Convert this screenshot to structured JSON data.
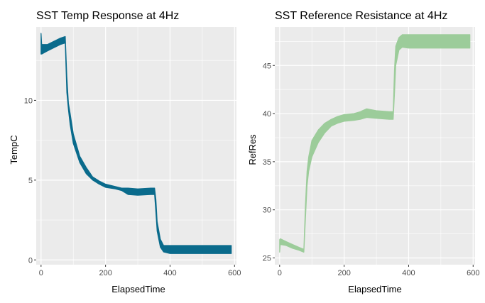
{
  "chart_data": [
    {
      "type": "line",
      "title": "SST Temp Response at 4Hz",
      "xlabel": "ElapsedTime",
      "ylabel": "TempC",
      "xlim": [
        -15,
        606
      ],
      "ylim": [
        -0.3,
        14.6
      ],
      "xticks": [
        0,
        200,
        400,
        600
      ],
      "yticks": [
        0,
        5,
        10
      ],
      "grid": true,
      "color": "#0a6b8c",
      "series": [
        {
          "band": true,
          "x": [
            0,
            2,
            20,
            40,
            60,
            75,
            80,
            85,
            90,
            100,
            120,
            140,
            160,
            180,
            200,
            230,
            250,
            270,
            300,
            340,
            352,
            356,
            360,
            370,
            380,
            400,
            500,
            590
          ],
          "ylow": [
            12.9,
            12.9,
            13.1,
            13.3,
            13.5,
            13.6,
            10.5,
            9.4,
            8.5,
            7.3,
            6.1,
            5.4,
            5.0,
            4.75,
            4.55,
            4.45,
            4.35,
            4.1,
            4.05,
            4.1,
            4.1,
            3.0,
            1.8,
            0.8,
            0.5,
            0.4,
            0.4,
            0.4
          ],
          "yhigh": [
            14.2,
            13.5,
            13.5,
            13.7,
            13.9,
            14.0,
            11.5,
            9.8,
            9.2,
            7.9,
            6.5,
            5.8,
            5.2,
            4.95,
            4.75,
            4.6,
            4.5,
            4.5,
            4.45,
            4.5,
            4.5,
            3.8,
            2.4,
            1.3,
            0.9,
            0.9,
            0.9,
            0.9
          ]
        }
      ]
    },
    {
      "type": "line",
      "title": "SST Reference Resistance at 4Hz",
      "xlabel": "ElapsedTime",
      "ylabel": "RefRes",
      "xlim": [
        -15,
        606
      ],
      "ylim": [
        24.3,
        49.0
      ],
      "xticks": [
        0,
        200,
        400,
        600
      ],
      "yticks": [
        25,
        30,
        35,
        40,
        45
      ],
      "grid": true,
      "color": "#9ccc9a",
      "series": [
        {
          "band": true,
          "x": [
            0,
            2,
            20,
            40,
            60,
            75,
            80,
            85,
            90,
            100,
            120,
            140,
            160,
            180,
            200,
            230,
            250,
            270,
            300,
            340,
            352,
            356,
            360,
            370,
            380,
            400,
            500,
            590
          ],
          "ylow": [
            25.6,
            26.4,
            26.3,
            26.0,
            25.8,
            25.6,
            29.0,
            32.5,
            34.0,
            35.5,
            37.0,
            38.0,
            38.7,
            39.0,
            39.2,
            39.3,
            39.4,
            39.6,
            39.5,
            39.4,
            39.4,
            42.0,
            45.0,
            46.6,
            46.9,
            46.8,
            46.8,
            46.8
          ],
          "yhigh": [
            26.9,
            27.0,
            26.7,
            26.4,
            26.1,
            25.9,
            30.5,
            34.0,
            35.5,
            37.2,
            38.3,
            39.0,
            39.4,
            39.7,
            39.9,
            40.0,
            40.2,
            40.5,
            40.3,
            40.2,
            40.2,
            44.5,
            47.0,
            47.9,
            48.2,
            48.2,
            48.2,
            48.2
          ]
        }
      ]
    }
  ]
}
